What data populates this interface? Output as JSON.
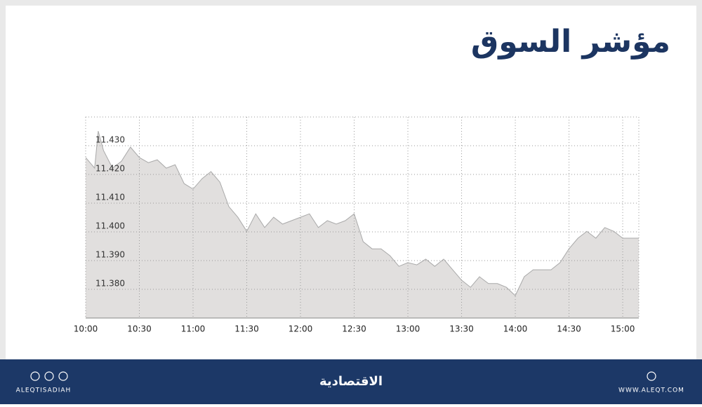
{
  "chart_data": {
    "type": "area",
    "title": "مؤشر السوق",
    "x": [
      600,
      605,
      607,
      610,
      615,
      620,
      625,
      630,
      635,
      640,
      645,
      650,
      655,
      660,
      665,
      670,
      675,
      680,
      685,
      690,
      695,
      700,
      705,
      710,
      715,
      720,
      725,
      730,
      735,
      740,
      745,
      750,
      755,
      760,
      765,
      770,
      775,
      780,
      785,
      790,
      795,
      800,
      805,
      810,
      815,
      820,
      825,
      830,
      835,
      840,
      845,
      850,
      855,
      860,
      865,
      870,
      875,
      880,
      885,
      890,
      895,
      900,
      909
    ],
    "values": [
      11.4259,
      11.4222,
      11.4351,
      11.4283,
      11.4222,
      11.4246,
      11.4295,
      11.4259,
      11.4241,
      11.4251,
      11.4222,
      11.4234,
      11.4168,
      11.4149,
      11.4185,
      11.421,
      11.4173,
      11.4088,
      11.4051,
      11.4002,
      11.4063,
      11.4015,
      11.4051,
      11.4027,
      11.4039,
      11.4051,
      11.4063,
      11.4015,
      11.4039,
      11.4027,
      11.4039,
      11.4063,
      11.3966,
      11.3941,
      11.3941,
      11.3917,
      11.388,
      11.3893,
      11.3885,
      11.3905,
      11.388,
      11.3905,
      11.3868,
      11.3832,
      11.3807,
      11.3844,
      11.382,
      11.382,
      11.3807,
      11.3778,
      11.3844,
      11.3868,
      11.3868,
      11.3868,
      11.3893,
      11.3941,
      11.3978,
      11.4002,
      11.3978,
      11.4015,
      11.4002,
      11.3978,
      11.3978
    ],
    "color": "#e1dfde",
    "line_color": "#a9a9a9",
    "xlim": [
      600,
      909
    ],
    "xticks": [
      {
        "value": 600,
        "label": "10:00"
      },
      {
        "value": 630,
        "label": "10:30"
      },
      {
        "value": 660,
        "label": "11:00"
      },
      {
        "value": 690,
        "label": "11:30"
      },
      {
        "value": 720,
        "label": "12:00"
      },
      {
        "value": 750,
        "label": "12:30"
      },
      {
        "value": 780,
        "label": "13:00"
      },
      {
        "value": 810,
        "label": "13:30"
      },
      {
        "value": 840,
        "label": "14:00"
      },
      {
        "value": 870,
        "label": "14:30"
      },
      {
        "value": 900,
        "label": "15:00"
      }
    ],
    "ylim": [
      11.37,
      11.44
    ],
    "yticks": [
      {
        "value": 11.38,
        "label": "11.380"
      },
      {
        "value": 11.39,
        "label": "11.390"
      },
      {
        "value": 11.4,
        "label": "11.400"
      },
      {
        "value": 11.41,
        "label": "11.410"
      },
      {
        "value": 11.42,
        "label": "11.420"
      },
      {
        "value": 11.43,
        "label": "11.430"
      }
    ],
    "grid": true
  },
  "footer": {
    "left": "ALEQTISADIAH",
    "center": "الاقتصادية",
    "right": "WWW.ALEQT.COM"
  }
}
